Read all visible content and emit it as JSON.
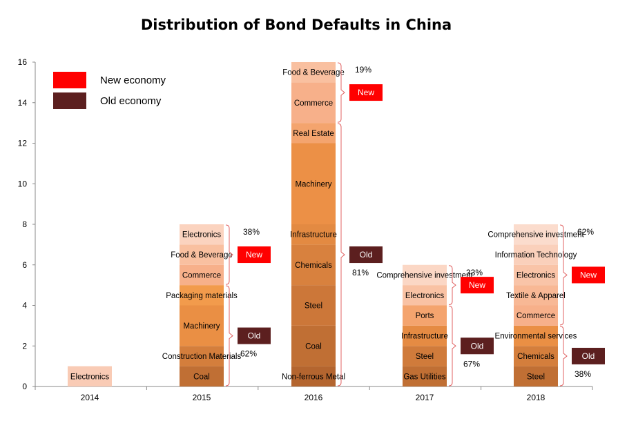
{
  "chart_data": {
    "type": "bar",
    "stacked": true,
    "title": "Distribution of Bond Defaults in China",
    "xlabel": "",
    "ylabel": "",
    "ylim": [
      0,
      16
    ],
    "yticks": [
      0,
      2,
      4,
      6,
      8,
      10,
      12,
      14,
      16
    ],
    "grid": false,
    "legend_position": "top-left",
    "legend": [
      {
        "label": "New economy",
        "color": "#ff0000"
      },
      {
        "label": "Old economy",
        "color": "#5c1f1f"
      }
    ],
    "categories": [
      "2014",
      "2015",
      "2016",
      "2017",
      "2018"
    ],
    "bars": [
      {
        "year": "2014",
        "segments": [
          {
            "label": "Electronics",
            "value": 1,
            "color": "#f9cbb5"
          }
        ],
        "groups": []
      },
      {
        "year": "2015",
        "segments": [
          {
            "label": "Coal",
            "value": 1,
            "color": "#c06f34"
          },
          {
            "label": "Construction Materials",
            "value": 1,
            "color": "#d47e3c"
          },
          {
            "label": "Machinery",
            "value": 2,
            "color": "#ea8f44"
          },
          {
            "label": "Packaging materials",
            "value": 1,
            "color": "#f29b4c"
          },
          {
            "label": "Commerce",
            "value": 1,
            "color": "#f7b08a"
          },
          {
            "label": "Food & Beverage",
            "value": 1,
            "color": "#f9c0a0"
          },
          {
            "label": "Electronics",
            "value": 1,
            "color": "#fbd3bf"
          }
        ],
        "groups": [
          {
            "tag": "Old",
            "pct": "62%",
            "from": 0,
            "to": 5
          },
          {
            "tag": "New",
            "pct": "38%",
            "from": 5,
            "to": 8
          }
        ]
      },
      {
        "year": "2016",
        "segments": [
          {
            "label": "Non-ferrous Metal",
            "value": 1,
            "color": "#b4652f"
          },
          {
            "label": "Coal",
            "value": 2,
            "color": "#c06f34"
          },
          {
            "label": "Steel",
            "value": 2,
            "color": "#cc7739"
          },
          {
            "label": "Chemicals",
            "value": 2,
            "color": "#d8813e"
          },
          {
            "label": "Infrastructure",
            "value": 1,
            "color": "#e38a42"
          },
          {
            "label": "Machinery",
            "value": 4,
            "color": "#ec9046"
          },
          {
            "label": "Real Estate",
            "value": 1,
            "color": "#f4a46e"
          },
          {
            "label": "Commerce",
            "value": 2,
            "color": "#f7b08a"
          },
          {
            "label": "Food & Beverage",
            "value": 1,
            "color": "#f9c0a0"
          }
        ],
        "groups": [
          {
            "tag": "Old",
            "pct": "81%",
            "from": 0,
            "to": 13
          },
          {
            "tag": "New",
            "pct": "19%",
            "from": 13,
            "to": 16
          }
        ]
      },
      {
        "year": "2017",
        "segments": [
          {
            "label": "Gas Utilities",
            "value": 1,
            "color": "#c06f34"
          },
          {
            "label": "Steel",
            "value": 1,
            "color": "#d07b3b"
          },
          {
            "label": "Infrastructure",
            "value": 1,
            "color": "#e58b43"
          },
          {
            "label": "Ports",
            "value": 1,
            "color": "#f4a46e"
          },
          {
            "label": "Electronics",
            "value": 1,
            "color": "#f9c2a4"
          },
          {
            "label": "Comprehensive investment",
            "value": 1,
            "color": "#fbd7c5"
          }
        ],
        "groups": [
          {
            "tag": "Old",
            "pct": "67%",
            "from": 0,
            "to": 4
          },
          {
            "tag": "New",
            "pct": "33%",
            "from": 4,
            "to": 6
          }
        ]
      },
      {
        "year": "2018",
        "segments": [
          {
            "label": "Steel",
            "value": 1,
            "color": "#c06f34"
          },
          {
            "label": "Chemicals",
            "value": 1,
            "color": "#d47e3c"
          },
          {
            "label": "Environmental services",
            "value": 1,
            "color": "#ea8f44"
          },
          {
            "label": "Commerce",
            "value": 1,
            "color": "#f7b08a"
          },
          {
            "label": "Textile & Apparel",
            "value": 1,
            "color": "#f8b895"
          },
          {
            "label": "Electronics",
            "value": 1,
            "color": "#f9c4a8"
          },
          {
            "label": "Information Technology",
            "value": 1,
            "color": "#fad0bb"
          },
          {
            "label": "Comprehensive investment",
            "value": 1,
            "color": "#fbdccd"
          }
        ],
        "groups": [
          {
            "tag": "Old",
            "pct": "38%",
            "from": 0,
            "to": 3
          },
          {
            "tag": "New",
            "pct": "62%",
            "from": 3,
            "to": 8
          }
        ]
      }
    ],
    "tag_colors": {
      "New": "#ff0000",
      "Old": "#5c1f1f"
    }
  }
}
